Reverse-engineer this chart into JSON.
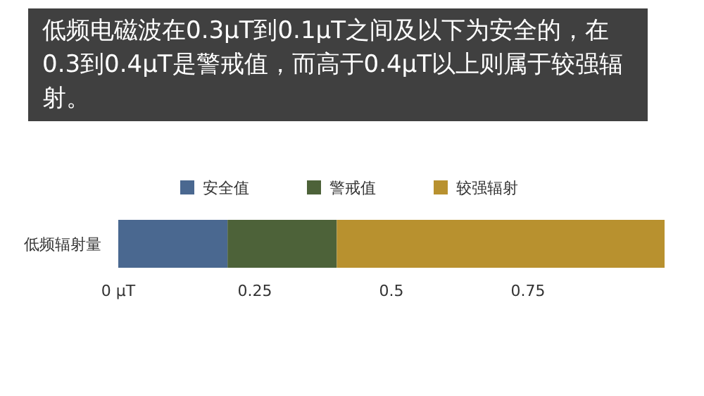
{
  "chart_data": {
    "type": "bar",
    "orientation": "horizontal",
    "stacked": true,
    "title": "低频电磁波在0.3μT到0.1μT之间及以下为安全的，在0.3到0.4μT是警戒值，而高于0.4μT以上则属于较强辐射。",
    "categories": [
      "低频辐射量"
    ],
    "series": [
      {
        "name": "安全值",
        "color": "#4a6890",
        "values": [
          0.2
        ]
      },
      {
        "name": "警戒值",
        "color": "#4d6239",
        "values": [
          0.2
        ]
      },
      {
        "name": "较强辐射",
        "color": "#b8912f",
        "values": [
          0.6
        ]
      }
    ],
    "xlim": [
      0,
      1
    ],
    "xticks": [
      {
        "value": 0,
        "label": "0 μT"
      },
      0.25,
      0.5,
      0.75
    ],
    "legend": "top"
  }
}
